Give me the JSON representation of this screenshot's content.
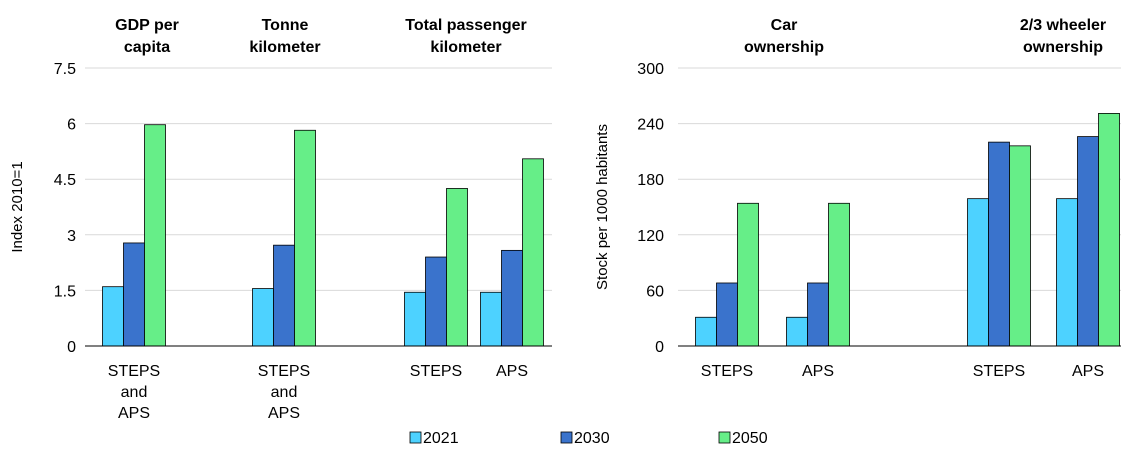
{
  "colors": {
    "2021": "#4dd2ff",
    "2030": "#3a73cc",
    "2050": "#66ee88",
    "grid": "#d9d9d9",
    "axis": "#000000"
  },
  "legend": [
    "2021",
    "2030",
    "2050"
  ],
  "chart_data": [
    {
      "type": "bar",
      "ylabel": "Index 2010=1",
      "ylim": [
        0,
        7.5
      ],
      "yticks": [
        "0",
        "1.5",
        "3",
        "4.5",
        "6",
        "7.5"
      ],
      "groups": [
        {
          "title": [
            "GDP per",
            "capita"
          ],
          "categories": [
            [
              "STEPS",
              "and",
              "APS"
            ]
          ]
        },
        {
          "title": [
            "Tonne",
            "kilometer"
          ],
          "categories": [
            [
              "STEPS",
              "and",
              "APS"
            ]
          ]
        },
        {
          "title": [
            "Total passenger",
            "kilometer"
          ],
          "categories": [
            [
              "STEPS"
            ],
            [
              "APS"
            ]
          ]
        }
      ],
      "series": [
        {
          "name": "2021",
          "values": [
            1.6,
            1.55,
            1.45,
            1.45
          ]
        },
        {
          "name": "2030",
          "values": [
            2.78,
            2.72,
            2.4,
            2.58
          ]
        },
        {
          "name": "2050",
          "values": [
            5.97,
            5.82,
            4.25,
            5.05
          ]
        }
      ]
    },
    {
      "type": "bar",
      "ylabel": "Stock per 1000 habitants",
      "ylim": [
        0,
        300
      ],
      "yticks": [
        "0",
        "60",
        "120",
        "180",
        "240",
        "300"
      ],
      "groups": [
        {
          "title": [
            "Car",
            "ownership"
          ],
          "categories": [
            [
              "STEPS"
            ],
            [
              "APS"
            ]
          ]
        },
        {
          "title": [
            "2/3 wheeler",
            "ownership"
          ],
          "categories": [
            [
              "STEPS"
            ],
            [
              "APS"
            ]
          ]
        }
      ],
      "series": [
        {
          "name": "2021",
          "values": [
            31,
            31,
            159,
            159
          ]
        },
        {
          "name": "2030",
          "values": [
            68,
            68,
            220,
            226
          ]
        },
        {
          "name": "2050",
          "values": [
            154,
            154,
            216,
            251
          ]
        }
      ]
    }
  ]
}
